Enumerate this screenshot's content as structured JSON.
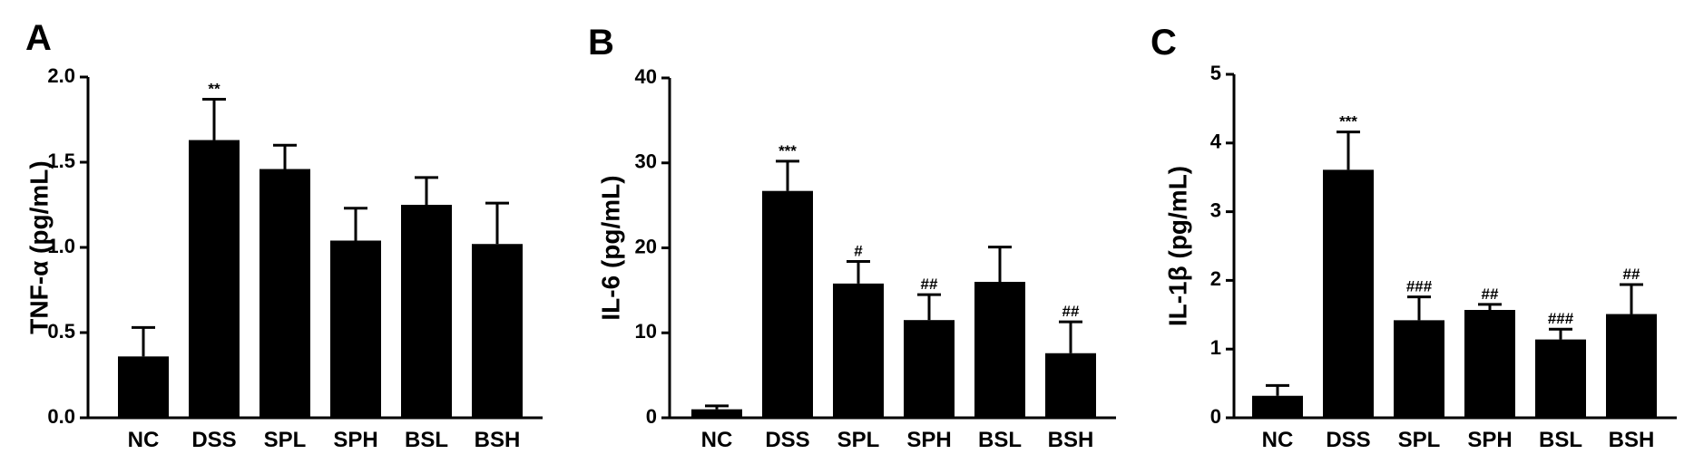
{
  "chart_data": [
    {
      "type": "bar",
      "panel": "A",
      "ylabel": "TNF-α (pg/mL)",
      "categories": [
        "NC",
        "DSS",
        "SPL",
        "SPH",
        "BSL",
        "BSH"
      ],
      "values": [
        0.36,
        1.63,
        1.46,
        1.04,
        1.25,
        1.02
      ],
      "errors": [
        0.17,
        0.24,
        0.14,
        0.19,
        0.16,
        0.24
      ],
      "annotations": [
        "",
        "**",
        "",
        "",
        "",
        ""
      ],
      "ylim": [
        0,
        2.0
      ],
      "yticks": [
        "0.0",
        "0.5",
        "1.0",
        "1.5",
        "2.0"
      ]
    },
    {
      "type": "bar",
      "panel": "B",
      "ylabel": "IL-6 (pg/mL)",
      "categories": [
        "NC",
        "DSS",
        "SPL",
        "SPH",
        "BSL",
        "BSH"
      ],
      "values": [
        1.0,
        26.7,
        15.8,
        11.5,
        16.0,
        7.6
      ],
      "errors": [
        0.4,
        3.5,
        2.6,
        3.0,
        4.1,
        3.7
      ],
      "annotations": [
        "",
        "***",
        "#",
        "##",
        "",
        "##"
      ],
      "ylim": [
        0,
        40
      ],
      "yticks": [
        "0",
        "10",
        "20",
        "30",
        "40"
      ]
    },
    {
      "type": "bar",
      "panel": "C",
      "ylabel": "IL-1β (pg/mL)",
      "categories": [
        "NC",
        "DSS",
        "SPL",
        "SPH",
        "BSL",
        "BSH"
      ],
      "values": [
        0.32,
        3.61,
        1.42,
        1.57,
        1.14,
        1.51
      ],
      "errors": [
        0.15,
        0.55,
        0.34,
        0.08,
        0.15,
        0.43
      ],
      "annotations": [
        "",
        "***",
        "###",
        "##",
        "###",
        "##"
      ],
      "ylim": [
        0,
        5
      ],
      "yticks": [
        "0",
        "1",
        "2",
        "3",
        "4",
        "5"
      ]
    }
  ]
}
